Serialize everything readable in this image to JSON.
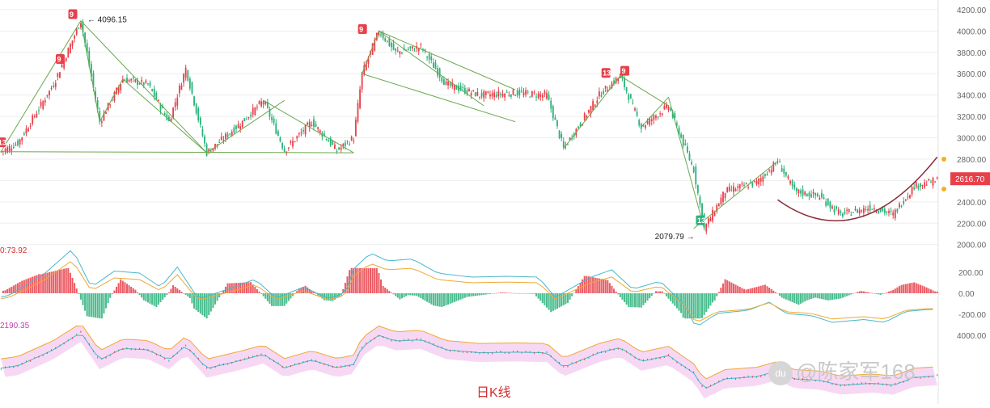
{
  "chart_data": {
    "type": "candlestick",
    "title": "日K线",
    "colors": {
      "up": "#e8404a",
      "down": "#2ab27b",
      "trend": "#6aa84f",
      "arc": "#8b2e3a",
      "band": "#f3c8ef",
      "ma1": "#f0a830",
      "ma2": "#48b8c8"
    },
    "price_axis": {
      "ticks": [
        "4200.00",
        "4000.00",
        "3800.00",
        "3600.00",
        "3400.00",
        "3200.00",
        "3000.00",
        "2800.00",
        "2600.00",
        "2400.00",
        "2200.00",
        "2000.00"
      ],
      "ylim": [
        1930,
        4260
      ]
    },
    "current_price": "2616.70",
    "annotations": {
      "high": "4096.15",
      "low": "2079.79"
    },
    "sequence_markers": [
      "13",
      "9",
      "9",
      "9",
      "13",
      "9",
      "13"
    ],
    "ohlc_waypoints": [
      [
        0,
        2870
      ],
      [
        8,
        2950
      ],
      [
        25,
        3500
      ],
      [
        38,
        4096
      ],
      [
        47,
        3150
      ],
      [
        58,
        3550
      ],
      [
        70,
        3500
      ],
      [
        80,
        3150
      ],
      [
        88,
        3650
      ],
      [
        98,
        2860
      ],
      [
        115,
        3150
      ],
      [
        125,
        3350
      ],
      [
        135,
        2880
      ],
      [
        148,
        3150
      ],
      [
        160,
        2880
      ],
      [
        168,
        3000
      ],
      [
        172,
        3600
      ],
      [
        180,
        4000
      ],
      [
        188,
        3800
      ],
      [
        200,
        3850
      ],
      [
        212,
        3500
      ],
      [
        228,
        3400
      ],
      [
        245,
        3420
      ],
      [
        260,
        3400
      ],
      [
        268,
        2900
      ],
      [
        285,
        3400
      ],
      [
        295,
        3580
      ],
      [
        305,
        3100
      ],
      [
        318,
        3300
      ],
      [
        330,
        2700
      ],
      [
        335,
        2150
      ],
      [
        345,
        2500
      ],
      [
        360,
        2580
      ],
      [
        370,
        2780
      ],
      [
        378,
        2500
      ],
      [
        390,
        2450
      ],
      [
        400,
        2280
      ],
      [
        415,
        2350
      ],
      [
        425,
        2280
      ],
      [
        435,
        2550
      ],
      [
        446,
        2600
      ]
    ],
    "macd": {
      "readout": "0:73.92",
      "ticks": [
        "200.00",
        "0.00",
        "-200.00"
      ]
    },
    "boll": {
      "readout": "2190.35",
      "ticks": [
        "4000.00"
      ]
    }
  },
  "watermark": {
    "logo_text": "du",
    "text": "@陈家军168"
  }
}
